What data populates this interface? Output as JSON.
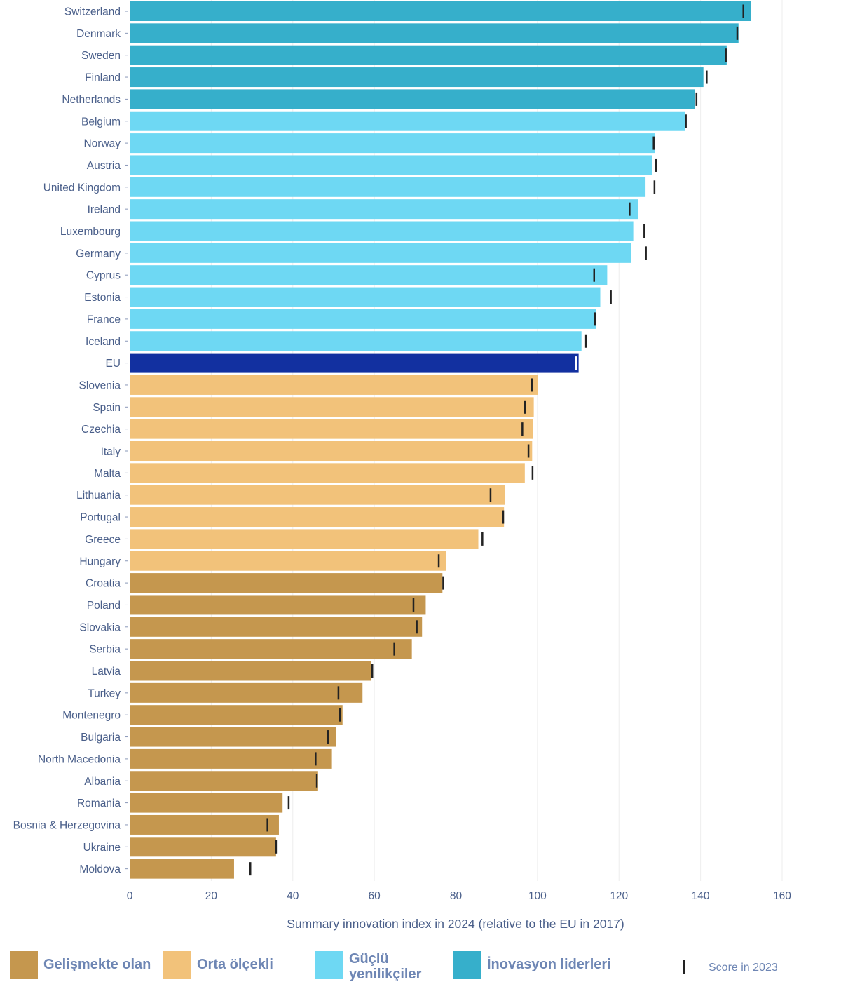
{
  "chart_data": {
    "type": "bar",
    "orientation": "horizontal",
    "xlabel": "Summary innovation index in 2024 (relative to the EU in 2017)",
    "xlim": [
      0,
      160
    ],
    "xticks": [
      "0",
      "20",
      "40",
      "60",
      "80",
      "100",
      "120",
      "140",
      "160"
    ],
    "grid": "vertical",
    "legend_position": "bottom",
    "categories": [
      "Switzerland",
      "Denmark",
      "Sweden",
      "Finland",
      "Netherlands",
      "Belgium",
      "Norway",
      "Austria",
      "United Kingdom",
      "Ireland",
      "Luxembourg",
      "Germany",
      "Cyprus",
      "Estonia",
      "France",
      "Iceland",
      "EU",
      "Slovenia",
      "Spain",
      "Czechia",
      "Italy",
      "Malta",
      "Lithuania",
      "Portugal",
      "Greece",
      "Hungary",
      "Croatia",
      "Poland",
      "Slovakia",
      "Serbia",
      "Latvia",
      "Turkey",
      "Montenegro",
      "Bulgaria",
      "North Macedonia",
      "Albania",
      "Romania",
      "Bosnia & Herzegovina",
      "Ukraine",
      "Moldova"
    ],
    "values": [
      152.3,
      149.3,
      146.4,
      140.7,
      138.6,
      136.2,
      128.8,
      128.1,
      126.5,
      124.6,
      123.5,
      123.0,
      117.1,
      115.4,
      114.3,
      110.8,
      110.1,
      100.1,
      99.1,
      98.9,
      98.7,
      96.9,
      92.1,
      91.8,
      85.5,
      77.6,
      76.7,
      72.6,
      71.7,
      69.2,
      59.2,
      57.1,
      52.2,
      50.6,
      49.6,
      46.2,
      37.5,
      36.6,
      35.9,
      25.6
    ],
    "score_2023": [
      150.5,
      149.0,
      146.2,
      141.5,
      139.0,
      136.4,
      128.5,
      129.1,
      128.7,
      122.6,
      126.2,
      126.6,
      113.9,
      118.0,
      114.1,
      111.9,
      109.5,
      98.6,
      96.9,
      96.3,
      97.8,
      98.8,
      88.5,
      91.6,
      86.5,
      75.8,
      76.9,
      69.6,
      70.4,
      64.9,
      59.5,
      51.2,
      51.6,
      48.6,
      45.6,
      45.9,
      39.0,
      33.8,
      35.9,
      29.6
    ],
    "groups": [
      "leader",
      "leader",
      "leader",
      "leader",
      "leader",
      "strong",
      "strong",
      "strong",
      "strong",
      "strong",
      "strong",
      "strong",
      "strong",
      "strong",
      "strong",
      "strong",
      "eu",
      "moderate",
      "moderate",
      "moderate",
      "moderate",
      "moderate",
      "moderate",
      "moderate",
      "moderate",
      "moderate",
      "emerging",
      "emerging",
      "emerging",
      "emerging",
      "emerging",
      "emerging",
      "emerging",
      "emerging",
      "emerging",
      "emerging",
      "emerging",
      "emerging",
      "emerging",
      "emerging"
    ],
    "group_colors": {
      "leader": "#36afcb",
      "strong": "#6ed8f3",
      "eu": "#1230a0",
      "moderate": "#f2c27a",
      "emerging": "#c5974e"
    },
    "marker_color": "#222222",
    "eu_marker_color": "#ffffff"
  },
  "legend": {
    "items": [
      {
        "label": "Gelişmekte olan",
        "color": "#c5974e"
      },
      {
        "label": "Orta ölçekli",
        "color": "#f2c27a"
      },
      {
        "label": "Güçlü yenilikçiler",
        "color": "#6ed8f3"
      },
      {
        "label": "İnovasyon liderleri",
        "color": "#36afcb"
      }
    ],
    "marker_label": "Score in 2023"
  }
}
